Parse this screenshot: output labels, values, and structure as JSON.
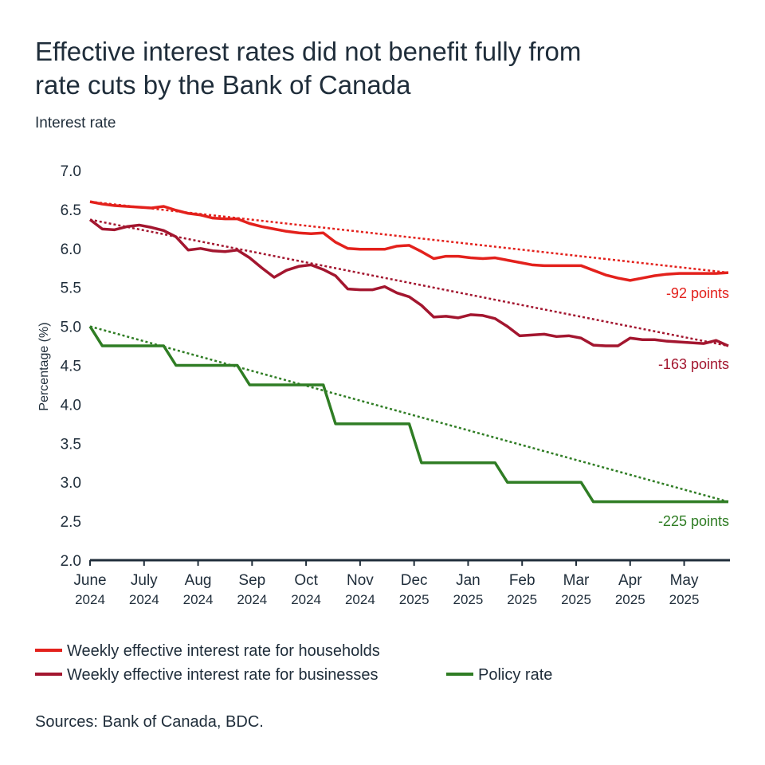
{
  "chart_data": {
    "type": "line",
    "title": [
      "Effective interest rates did not benefit fully from",
      "rate cuts by the Bank of Canada"
    ],
    "subtitle": "Interest rate",
    "y_label": "Percentage (%)",
    "source": "Sources: Bank of Canada, BDC.",
    "x": [
      0,
      1,
      2,
      3,
      4,
      5,
      6,
      7,
      8,
      9,
      10,
      11,
      12,
      13,
      14,
      15,
      16,
      17,
      18,
      19,
      20,
      21,
      22,
      23,
      24,
      25,
      26,
      27,
      28,
      29,
      30,
      31,
      32,
      33,
      34,
      35,
      36,
      37,
      38,
      39,
      40,
      41,
      42,
      43,
      44,
      45,
      46,
      47,
      48,
      49,
      50,
      51,
      52
    ],
    "xlim": [
      0,
      52
    ],
    "xticks": [
      {
        "value": 0,
        "label": [
          "June",
          "2024"
        ]
      },
      {
        "value": 4.4,
        "label": [
          "July",
          "2024"
        ]
      },
      {
        "value": 8.8,
        "label": [
          "Aug",
          "2024"
        ]
      },
      {
        "value": 13.2,
        "label": [
          "Sep",
          "2024"
        ]
      },
      {
        "value": 17.6,
        "label": [
          "Oct",
          "2024"
        ]
      },
      {
        "value": 22,
        "label": [
          "Nov",
          "2024"
        ]
      },
      {
        "value": 26.4,
        "label": [
          "Dec",
          "2025"
        ]
      },
      {
        "value": 30.8,
        "label": [
          "Jan",
          "2025"
        ]
      },
      {
        "value": 35.2,
        "label": [
          "Feb",
          "2025"
        ]
      },
      {
        "value": 39.6,
        "label": [
          "Mar",
          "2025"
        ]
      },
      {
        "value": 44,
        "label": [
          "Apr",
          "2025"
        ]
      },
      {
        "value": 48.4,
        "label": [
          "May",
          "2025"
        ]
      }
    ],
    "ylim": [
      2,
      7
    ],
    "yticks": [
      {
        "value": 2,
        "label": "2.0"
      },
      2.5,
      {
        "value": 3,
        "label": "3.0"
      },
      3.5,
      {
        "value": 4,
        "label": "4.0"
      },
      4.5,
      {
        "value": 5,
        "label": "5.0"
      },
      5.5,
      {
        "value": 6,
        "label": "6.0"
      },
      6.5,
      {
        "value": 7,
        "label": "7.0"
      }
    ],
    "series": [
      {
        "name": "Weekly effective interest rate for households",
        "color": "#e3211c",
        "values": [
          6.6,
          6.57,
          6.55,
          6.54,
          6.53,
          6.52,
          6.54,
          6.49,
          6.45,
          6.43,
          6.39,
          6.38,
          6.38,
          6.32,
          6.28,
          6.25,
          6.22,
          6.2,
          6.19,
          6.2,
          6.08,
          6.0,
          5.99,
          5.99,
          5.99,
          6.03,
          6.04,
          5.96,
          5.87,
          5.9,
          5.9,
          5.88,
          5.87,
          5.88,
          5.85,
          5.82,
          5.79,
          5.78,
          5.78,
          5.78,
          5.78,
          5.72,
          5.66,
          5.62,
          5.59,
          5.62,
          5.65,
          5.67,
          5.68,
          5.68,
          5.68,
          5.68,
          5.69
        ],
        "trend": {
          "x": [
            0,
            52
          ],
          "values": [
            6.6,
            5.69
          ]
        },
        "annotation": "-92 points"
      },
      {
        "name": "Weekly effective interest rate for businesses",
        "color": "#a3162f",
        "values": [
          6.37,
          6.25,
          6.24,
          6.28,
          6.3,
          6.27,
          6.23,
          6.15,
          5.98,
          6.0,
          5.97,
          5.96,
          5.98,
          5.88,
          5.75,
          5.63,
          5.72,
          5.77,
          5.79,
          5.73,
          5.65,
          5.48,
          5.47,
          5.47,
          5.51,
          5.43,
          5.38,
          5.27,
          5.12,
          5.13,
          5.11,
          5.15,
          5.14,
          5.1,
          5.0,
          4.88,
          4.89,
          4.9,
          4.87,
          4.88,
          4.85,
          4.76,
          4.75,
          4.75,
          4.85,
          4.83,
          4.83,
          4.81,
          4.8,
          4.79,
          4.78,
          4.82,
          4.75
        ],
        "trend": {
          "x": [
            0,
            52
          ],
          "values": [
            6.37,
            4.75
          ]
        },
        "annotation": "-163 points"
      },
      {
        "name": "Policy rate",
        "color": "#2f7d24",
        "values": [
          5.0,
          4.75,
          4.75,
          4.75,
          4.75,
          4.75,
          4.75,
          4.5,
          4.5,
          4.5,
          4.5,
          4.5,
          4.5,
          4.25,
          4.25,
          4.25,
          4.25,
          4.25,
          4.25,
          4.25,
          3.75,
          3.75,
          3.75,
          3.75,
          3.75,
          3.75,
          3.75,
          3.25,
          3.25,
          3.25,
          3.25,
          3.25,
          3.25,
          3.25,
          3.0,
          3.0,
          3.0,
          3.0,
          3.0,
          3.0,
          3.0,
          2.75,
          2.75,
          2.75,
          2.75,
          2.75,
          2.75,
          2.75,
          2.75,
          2.75,
          2.75,
          2.75,
          2.75
        ],
        "trend": {
          "x": [
            0,
            52
          ],
          "values": [
            5.0,
            2.75
          ]
        },
        "annotation": "-225 points"
      }
    ]
  }
}
